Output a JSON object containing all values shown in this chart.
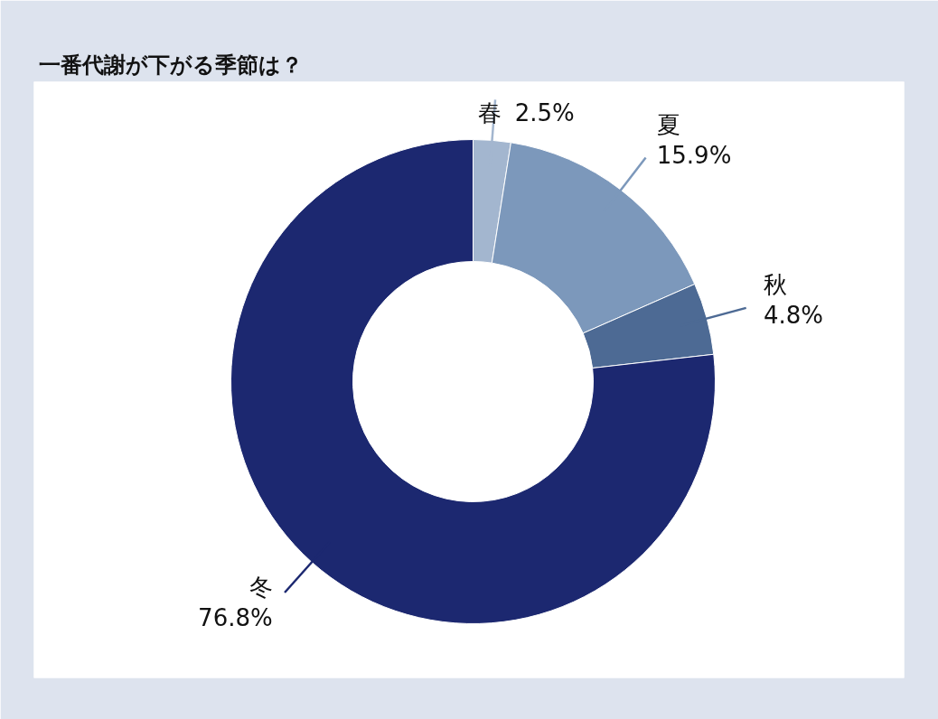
{
  "chart_data": {
    "type": "donut",
    "title": "一番代謝が下がる季節は？",
    "categories": [
      "春",
      "夏",
      "秋",
      "冬"
    ],
    "values": [
      2.5,
      15.9,
      4.8,
      76.8
    ],
    "colors": [
      "#a3b6cf",
      "#7c98bb",
      "#4d6a94",
      "#1c2870"
    ],
    "value_labels": [
      "2.5%",
      "15.9%",
      "4.8%",
      "76.8%"
    ]
  }
}
